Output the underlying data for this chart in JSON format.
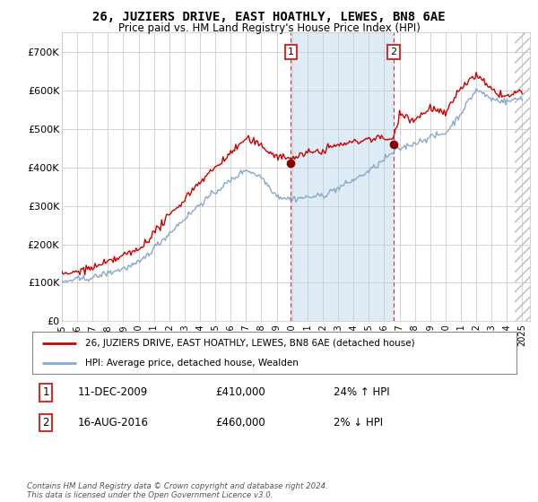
{
  "title": "26, JUZIERS DRIVE, EAST HOATHLY, LEWES, BN8 6AE",
  "subtitle": "Price paid vs. HM Land Registry's House Price Index (HPI)",
  "ylim": [
    0,
    750000
  ],
  "yticks": [
    0,
    100000,
    200000,
    300000,
    400000,
    500000,
    600000,
    700000
  ],
  "ytick_labels": [
    "£0",
    "£100K",
    "£200K",
    "£300K",
    "£400K",
    "£500K",
    "£600K",
    "£700K"
  ],
  "legend_line1": "26, JUZIERS DRIVE, EAST HOATHLY, LEWES, BN8 6AE (detached house)",
  "legend_line2": "HPI: Average price, detached house, Wealden",
  "annotation1_label": "1",
  "annotation1_date": "11-DEC-2009",
  "annotation1_price": "£410,000",
  "annotation1_hpi": "24% ↑ HPI",
  "annotation2_label": "2",
  "annotation2_date": "16-AUG-2016",
  "annotation2_price": "£460,000",
  "annotation2_hpi": "2% ↓ HPI",
  "footer": "Contains HM Land Registry data © Crown copyright and database right 2024.\nThis data is licensed under the Open Government Licence v3.0.",
  "red_color": "#cc0000",
  "blue_color": "#88aacc",
  "sale1_x": 2009.92,
  "sale2_x": 2016.62,
  "sale1_y": 410000,
  "sale2_y": 460000,
  "hatch_start": 2024.5,
  "xmin": 1995,
  "xmax": 2025.5,
  "shade_color": "#d0e4f5",
  "hatch_color": "#cccccc",
  "grid_color": "#cccccc",
  "plot_bg": "#ffffff"
}
